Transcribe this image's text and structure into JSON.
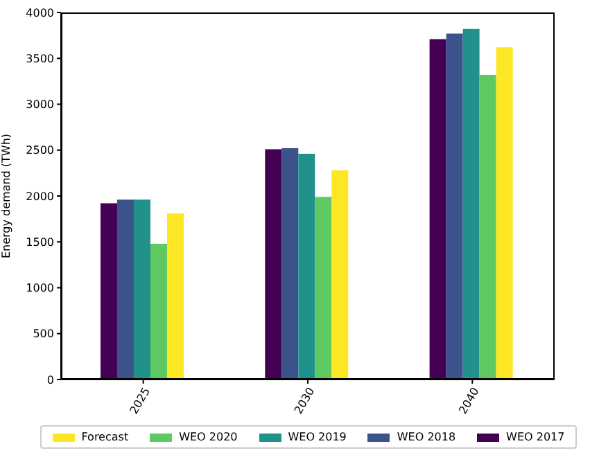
{
  "chart_data": {
    "type": "bar",
    "ylabel": "Energy demand (TWh)",
    "categories": [
      "2025",
      "2030",
      "2040"
    ],
    "series": [
      {
        "name": "WEO 2017",
        "color": "#440154",
        "values": [
          1920,
          2510,
          3710
        ]
      },
      {
        "name": "WEO 2018",
        "color": "#3b528b",
        "values": [
          1960,
          2520,
          3770
        ]
      },
      {
        "name": "WEO 2019",
        "color": "#21918c",
        "values": [
          1960,
          2460,
          3820
        ]
      },
      {
        "name": "WEO 2020",
        "color": "#5ec962",
        "values": [
          1480,
          1990,
          3320
        ]
      },
      {
        "name": "Forecast",
        "color": "#fde725",
        "values": [
          1810,
          2280,
          3620
        ]
      }
    ],
    "ylim": [
      0,
      4000
    ],
    "yticks": [
      0,
      500,
      1000,
      1500,
      2000,
      2500,
      3000,
      3500,
      4000
    ],
    "grid": false,
    "legend": "bottom"
  }
}
